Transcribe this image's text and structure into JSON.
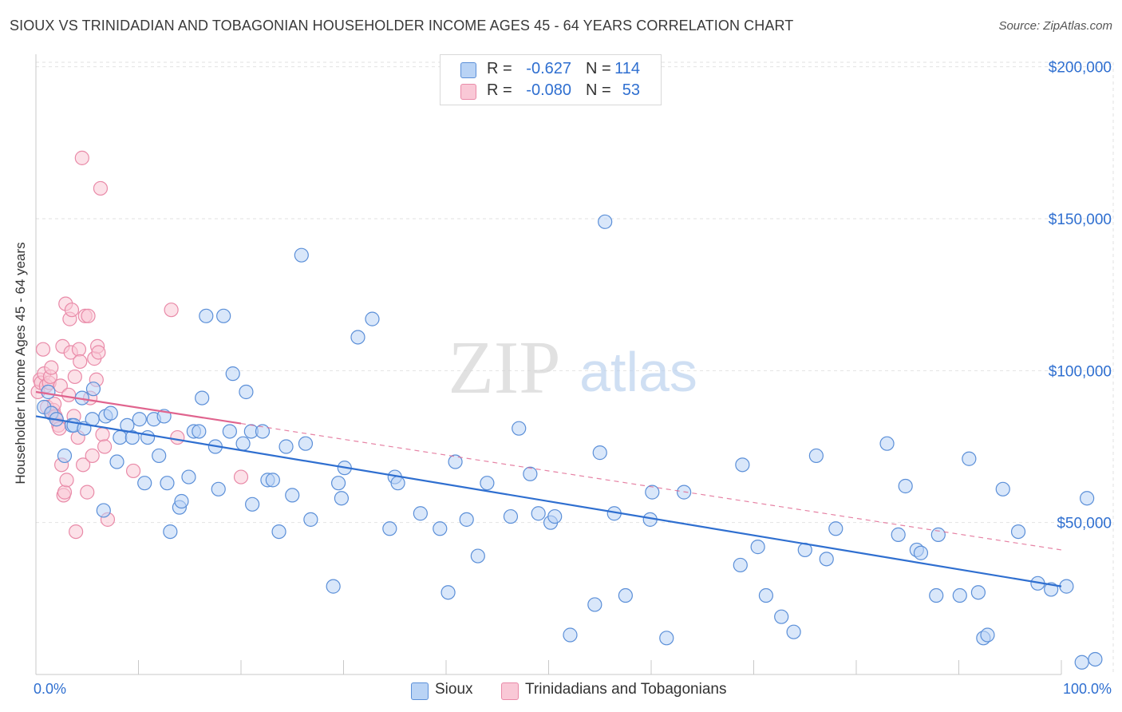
{
  "title": "SIOUX VS TRINIDADIAN AND TOBAGONIAN HOUSEHOLDER INCOME AGES 45 - 64 YEARS CORRELATION CHART",
  "source": "Source: ZipAtlas.com",
  "watermark": {
    "zip": "ZIP",
    "atlas": "atlas"
  },
  "legend_top": {
    "rows": [
      {
        "r_label": "R =",
        "r_value": "-0.627",
        "n_label": "N =",
        "n_value": "114"
      },
      {
        "r_label": "R =",
        "r_value": "-0.080",
        "n_label": "N =",
        "n_value": "53"
      }
    ]
  },
  "legend_bottom": [
    "Sioux",
    "Trinidadians and Tobagonians"
  ],
  "colors": {
    "sioux_fill": "#b9d3f5",
    "sioux_stroke": "#5b8fd8",
    "sioux_line": "#2f6fd0",
    "trin_fill": "#f9c8d6",
    "trin_stroke": "#e98aa8",
    "trin_line": "#e0648e",
    "grid": "#e2e2e2",
    "axis_text": "#2f6fd0"
  },
  "chart_data": {
    "type": "scatter",
    "title": "SIOUX VS TRINIDADIAN AND TOBAGONIAN HOUSEHOLDER INCOME AGES 45 - 64 YEARS CORRELATION CHART",
    "xlabel": "",
    "ylabel": "Householder Income Ages 45 - 64 years",
    "xlim": [
      0,
      100
    ],
    "ylim": [
      0,
      210000
    ],
    "x_tick_labels": [
      "0.0%",
      "100.0%"
    ],
    "y_ticks": [
      50000,
      100000,
      150000,
      200000
    ],
    "y_tick_labels": [
      "$50,000",
      "$100,000",
      "$150,000",
      "$200,000"
    ],
    "grid": true,
    "legend_position": "bottom-center",
    "series": [
      {
        "name": "Sioux",
        "r": -0.627,
        "n": 114,
        "trend": {
          "x": [
            0,
            100
          ],
          "y": [
            85000,
            29000
          ],
          "style": "solid"
        },
        "points": [
          [
            0.8,
            88000
          ],
          [
            1.2,
            93000
          ],
          [
            1.5,
            86000
          ],
          [
            2.0,
            84000
          ],
          [
            2.8,
            72000
          ],
          [
            3.5,
            82000
          ],
          [
            3.7,
            82000
          ],
          [
            4.5,
            91000
          ],
          [
            4.7,
            81000
          ],
          [
            5.6,
            94000
          ],
          [
            5.5,
            84000
          ],
          [
            6.6,
            54000
          ],
          [
            6.8,
            85000
          ],
          [
            7.3,
            86000
          ],
          [
            7.9,
            70000
          ],
          [
            8.2,
            78000
          ],
          [
            8.9,
            82000
          ],
          [
            9.4,
            78000
          ],
          [
            10.1,
            84000
          ],
          [
            10.9,
            78000
          ],
          [
            10.6,
            63000
          ],
          [
            11.5,
            84000
          ],
          [
            12.0,
            72000
          ],
          [
            12.5,
            85000
          ],
          [
            12.8,
            63000
          ],
          [
            13.1,
            47000
          ],
          [
            14.0,
            55000
          ],
          [
            14.2,
            57000
          ],
          [
            14.9,
            65000
          ],
          [
            15.4,
            80000
          ],
          [
            15.9,
            80000
          ],
          [
            16.2,
            91000
          ],
          [
            16.6,
            118000
          ],
          [
            17.5,
            75000
          ],
          [
            17.8,
            61000
          ],
          [
            18.3,
            118000
          ],
          [
            18.9,
            80000
          ],
          [
            19.2,
            99000
          ],
          [
            20.2,
            76000
          ],
          [
            20.5,
            93000
          ],
          [
            21.0,
            80000
          ],
          [
            21.1,
            56000
          ],
          [
            22.1,
            80000
          ],
          [
            22.6,
            64000
          ],
          [
            23.1,
            64000
          ],
          [
            23.7,
            47000
          ],
          [
            24.4,
            75000
          ],
          [
            25.0,
            59000
          ],
          [
            25.9,
            138000
          ],
          [
            26.3,
            76000
          ],
          [
            26.8,
            51000
          ],
          [
            29.0,
            29000
          ],
          [
            29.5,
            63000
          ],
          [
            29.8,
            58000
          ],
          [
            30.1,
            68000
          ],
          [
            31.4,
            111000
          ],
          [
            32.8,
            117000
          ],
          [
            34.5,
            48000
          ],
          [
            35.0,
            65000
          ],
          [
            35.3,
            63000
          ],
          [
            37.5,
            53000
          ],
          [
            39.4,
            48000
          ],
          [
            40.2,
            27000
          ],
          [
            40.9,
            70000
          ],
          [
            42.0,
            51000
          ],
          [
            43.1,
            39000
          ],
          [
            44.0,
            63000
          ],
          [
            46.3,
            52000
          ],
          [
            47.1,
            81000
          ],
          [
            48.2,
            66000
          ],
          [
            49.0,
            53000
          ],
          [
            50.2,
            50000
          ],
          [
            50.6,
            52000
          ],
          [
            52.1,
            13000
          ],
          [
            54.5,
            23000
          ],
          [
            55.0,
            73000
          ],
          [
            55.5,
            149000
          ],
          [
            56.4,
            53000
          ],
          [
            57.5,
            26000
          ],
          [
            59.9,
            51000
          ],
          [
            60.1,
            60000
          ],
          [
            61.5,
            12000
          ],
          [
            63.2,
            60000
          ],
          [
            68.7,
            36000
          ],
          [
            68.9,
            69000
          ],
          [
            70.4,
            42000
          ],
          [
            71.2,
            26000
          ],
          [
            72.7,
            19000
          ],
          [
            73.9,
            14000
          ],
          [
            75.0,
            41000
          ],
          [
            76.1,
            72000
          ],
          [
            77.1,
            38000
          ],
          [
            78.0,
            48000
          ],
          [
            83.0,
            76000
          ],
          [
            84.1,
            46000
          ],
          [
            84.8,
            62000
          ],
          [
            85.9,
            41000
          ],
          [
            86.3,
            40000
          ],
          [
            87.8,
            26000
          ],
          [
            88.0,
            46000
          ],
          [
            90.1,
            26000
          ],
          [
            91.0,
            71000
          ],
          [
            91.9,
            27000
          ],
          [
            92.4,
            12000
          ],
          [
            92.8,
            13000
          ],
          [
            94.3,
            61000
          ],
          [
            95.8,
            47000
          ],
          [
            97.7,
            30000
          ],
          [
            99.0,
            28000
          ],
          [
            100.5,
            29000
          ],
          [
            102.0,
            4000
          ],
          [
            102.5,
            58000
          ],
          [
            103.3,
            5000
          ]
        ]
      },
      {
        "name": "Trinidadians and Tobagonians",
        "r": -0.08,
        "n": 53,
        "trend": {
          "x": [
            0,
            100
          ],
          "y": [
            93000,
            41000
          ],
          "style": "solid-then-dashed",
          "solid_until": 20
        },
        "points": [
          [
            0.2,
            93000
          ],
          [
            0.4,
            97000
          ],
          [
            0.5,
            96000
          ],
          [
            0.7,
            107000
          ],
          [
            0.8,
            99000
          ],
          [
            1.0,
            95000
          ],
          [
            1.1,
            88000
          ],
          [
            1.3,
            96000
          ],
          [
            1.4,
            98000
          ],
          [
            1.5,
            101000
          ],
          [
            1.6,
            86000
          ],
          [
            1.7,
            87000
          ],
          [
            1.8,
            89000
          ],
          [
            1.9,
            85000
          ],
          [
            2.0,
            84000
          ],
          [
            2.2,
            82000
          ],
          [
            2.3,
            81000
          ],
          [
            2.4,
            95000
          ],
          [
            2.5,
            69000
          ],
          [
            2.6,
            108000
          ],
          [
            2.7,
            59000
          ],
          [
            2.8,
            60000
          ],
          [
            2.9,
            122000
          ],
          [
            3.0,
            64000
          ],
          [
            3.2,
            92000
          ],
          [
            3.3,
            117000
          ],
          [
            3.4,
            106000
          ],
          [
            3.5,
            120000
          ],
          [
            3.7,
            85000
          ],
          [
            3.8,
            98000
          ],
          [
            3.9,
            47000
          ],
          [
            4.1,
            78000
          ],
          [
            4.2,
            107000
          ],
          [
            4.3,
            103000
          ],
          [
            4.6,
            69000
          ],
          [
            4.8,
            118000
          ],
          [
            5.0,
            60000
          ],
          [
            5.1,
            118000
          ],
          [
            5.3,
            91000
          ],
          [
            5.5,
            72000
          ],
          [
            5.7,
            104000
          ],
          [
            5.9,
            97000
          ],
          [
            6.0,
            108000
          ],
          [
            6.1,
            106000
          ],
          [
            6.3,
            160000
          ],
          [
            6.5,
            79000
          ],
          [
            6.7,
            75000
          ],
          [
            7.0,
            51000
          ],
          [
            4.5,
            170000
          ],
          [
            13.2,
            120000
          ],
          [
            13.8,
            78000
          ],
          [
            20.0,
            65000
          ],
          [
            9.5,
            67000
          ]
        ]
      }
    ]
  }
}
